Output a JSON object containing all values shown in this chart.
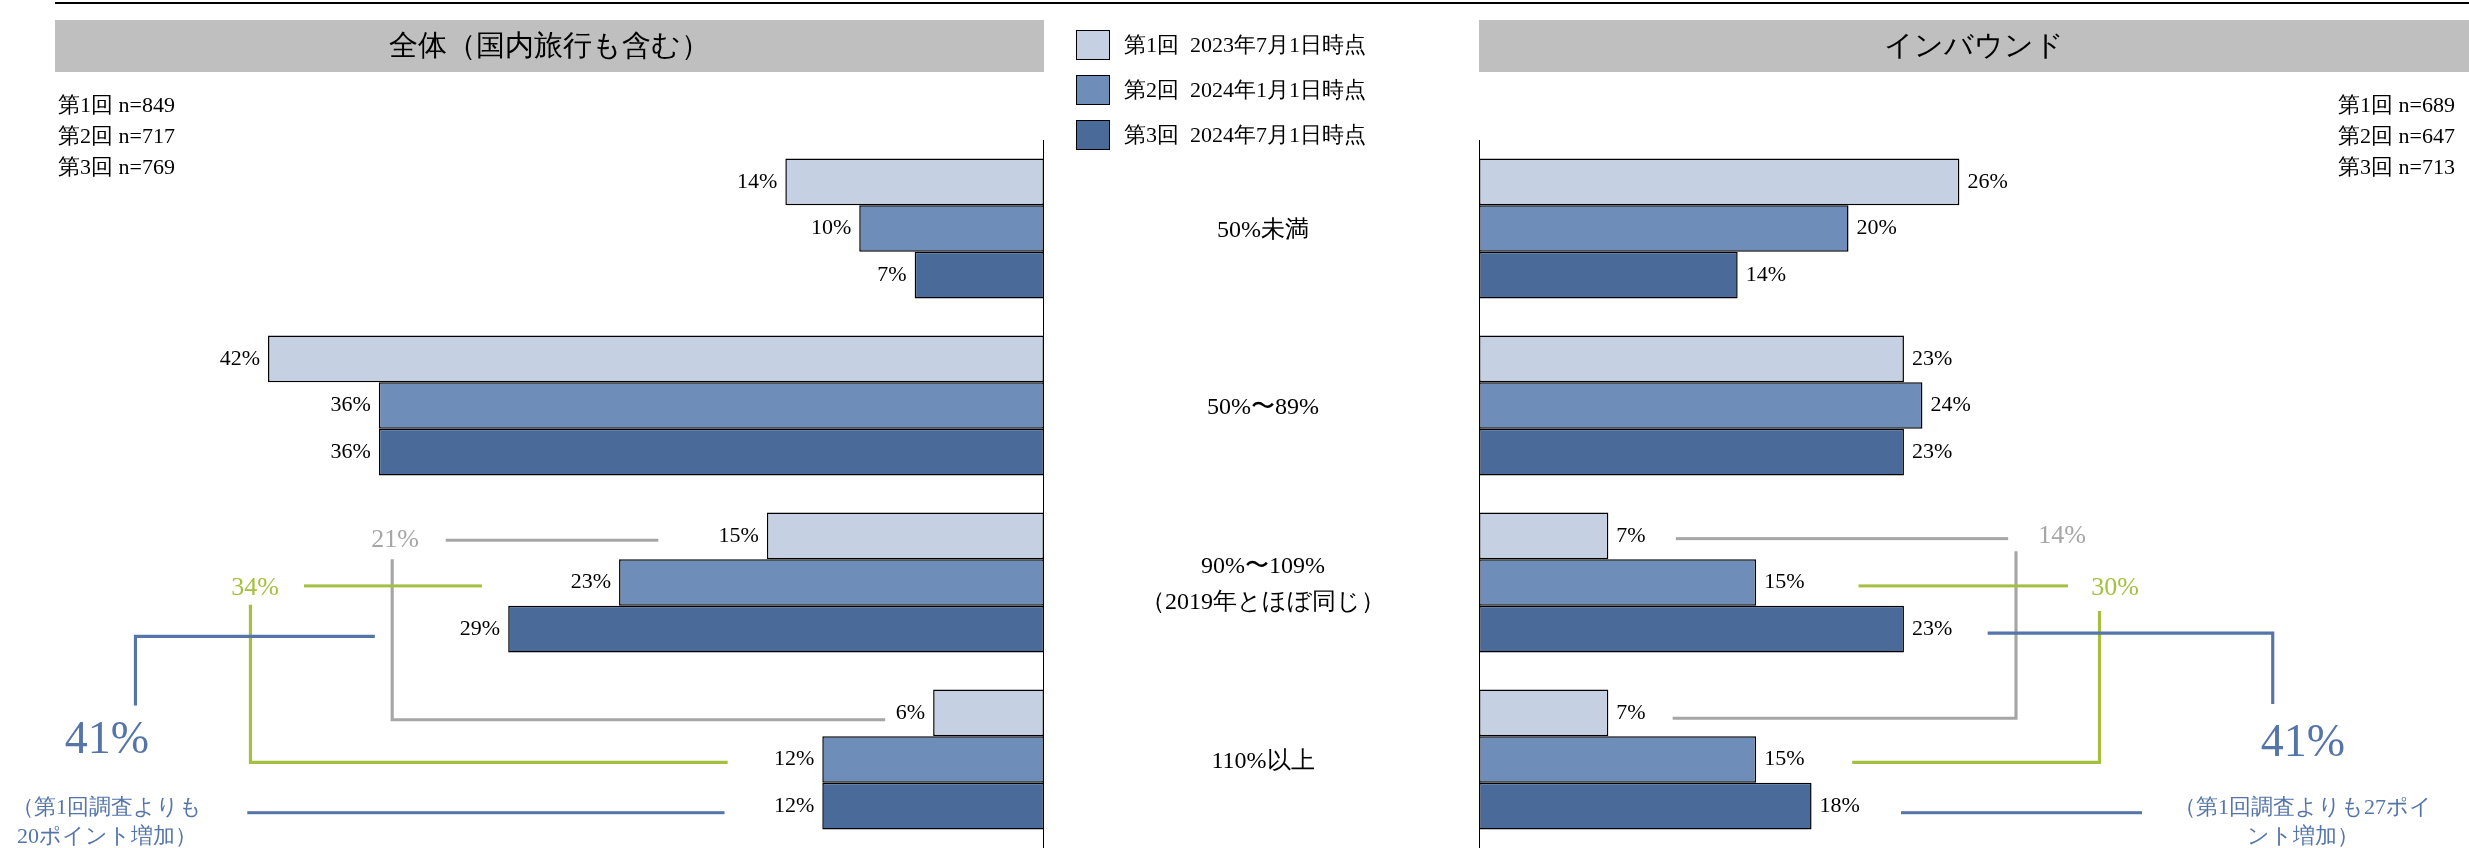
{
  "chart_data": [
    {
      "type": "bar",
      "orientation": "horizontal",
      "title": "全体（国内旅行も含む）",
      "categories": [
        "50%未満",
        "50%〜89%",
        "90%〜109%\n（2019年とほぼ同じ）",
        "110%以上"
      ],
      "tick_labels": false,
      "legend": "top right",
      "series": [
        {
          "name": "第1回  2023年7月1日時点",
          "color": "#c5d0e2",
          "values": [
            14,
            42,
            15,
            6
          ],
          "value_labels": [
            "14%",
            "42%",
            "15%",
            "6%"
          ]
        },
        {
          "name": "第2回  2024年1月1日時点",
          "color": "#6e8db9",
          "values": [
            10,
            36,
            23,
            12
          ],
          "value_labels": [
            "10%",
            "36%",
            "23%",
            "12%"
          ]
        },
        {
          "name": "第3回  2024年7月1日時点",
          "color": "#4a6a9a",
          "values": [
            7,
            36,
            29,
            12
          ],
          "value_labels": [
            "7%",
            "36%",
            "29%",
            "12%"
          ]
        }
      ],
      "annotations": [
        "第1回 n=849",
        "第2回 n=717",
        "第3回 n=769",
        "21%",
        "34%",
        "41%",
        "（第1回調査よりも20ポイント増加）"
      ]
    },
    {
      "type": "bar",
      "orientation": "horizontal",
      "title": "インバウンド",
      "categories": [
        "50%未満",
        "50%〜89%",
        "90%〜109%\n（2019年とほぼ同じ）",
        "110%以上"
      ],
      "tick_labels": false,
      "series": [
        {
          "name": "第1回  2023年7月1日時点",
          "color": "#c5d0e2",
          "values": [
            26,
            23,
            7,
            7
          ],
          "value_labels": [
            "26%",
            "23%",
            "7%",
            "7%"
          ]
        },
        {
          "name": "第2回  2024年1月1日時点",
          "color": "#6e8db9",
          "values": [
            20,
            24,
            15,
            15
          ],
          "value_labels": [
            "20%",
            "24%",
            "15%",
            "15%"
          ]
        },
        {
          "name": "第3回  2024年7月1日時点",
          "color": "#4a6a9a",
          "values": [
            14,
            23,
            23,
            18
          ],
          "value_labels": [
            "14%",
            "23%",
            "23%",
            "18%"
          ]
        }
      ],
      "annotations": [
        "第1回 n=689",
        "第2回 n=647",
        "第3回 n=713",
        "14%",
        "30%",
        "41%",
        "（第1回調査よりも27ポイント増加）"
      ]
    }
  ]
}
